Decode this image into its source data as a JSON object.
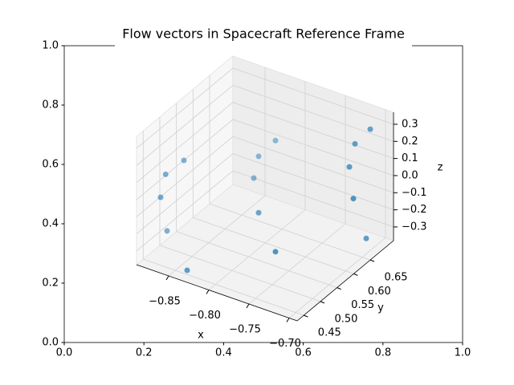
{
  "chart_data": {
    "type": "scatter3d",
    "title": "Flow vectors in Spacecraft Reference Frame",
    "axes2d": {
      "xlim": [
        0,
        1
      ],
      "ylim": [
        0,
        1
      ],
      "xticks": [
        {
          "value": 0,
          "label": "0.0"
        },
        0.2,
        0.4,
        0.6,
        0.8,
        {
          "value": 1,
          "label": "1.0"
        }
      ],
      "yticks": [
        {
          "value": 0,
          "label": "0.0"
        },
        0.2,
        0.4,
        0.6,
        0.8,
        {
          "value": 1,
          "label": "1.0"
        }
      ]
    },
    "xlabel": "x",
    "ylabel": "y",
    "zlabel": "z",
    "color": "#1f77b4",
    "x": [
      -0.839,
      -0.888,
      -0.884,
      -0.884,
      -0.879,
      -0.828,
      -0.834,
      -0.825,
      -0.798,
      -0.753,
      -0.707,
      -0.714,
      -0.709,
      -0.692,
      -0.7
    ],
    "y": [
      0.459,
      0.517,
      0.488,
      0.503,
      0.546,
      0.633,
      0.662,
      0.691,
      0.575,
      0.517,
      0.691,
      0.662,
      0.633,
      0.604,
      0.662
    ],
    "z": [
      -0.376,
      -0.32,
      -0.07,
      0.04,
      0.06,
      -0.1,
      -0.03,
      0.03,
      -0.16,
      -0.22,
      0.29,
      0.24,
      0.16,
      0.05,
      -0.29
    ],
    "xlim": [
      -0.89,
      -0.69
    ],
    "ylim": [
      0.43,
      0.72
    ],
    "zlim": [
      -0.38,
      0.37
    ],
    "xticks": [
      {
        "value": -0.85,
        "label": "−0.85"
      },
      {
        "value": -0.8,
        "label": "−0.80"
      },
      {
        "value": -0.75,
        "label": "−0.75"
      },
      {
        "value": -0.7,
        "label": "−0.70"
      }
    ],
    "yticks": [
      0.45,
      {
        "value": 0.5,
        "label": "0.50"
      },
      0.55,
      {
        "value": 0.6,
        "label": "0.60"
      },
      0.65
    ],
    "zticks": [
      {
        "value": -0.3,
        "label": "−0.3"
      },
      {
        "value": -0.2,
        "label": "−0.2"
      },
      {
        "value": -0.1,
        "label": "−0.1"
      },
      {
        "value": 0,
        "label": "0.0"
      },
      0.1,
      0.2,
      0.3
    ],
    "grid": true
  }
}
